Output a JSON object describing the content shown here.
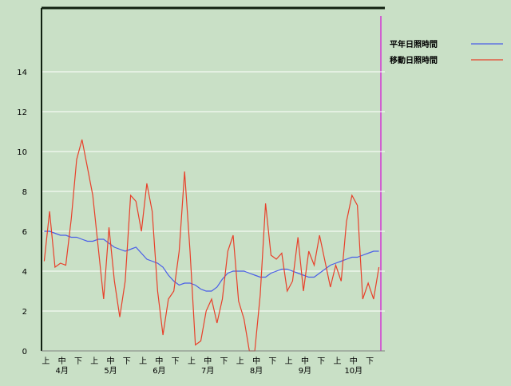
{
  "chart_data": {
    "type": "line",
    "categories": [
      "上",
      null,
      null,
      "中",
      null,
      null,
      "下",
      null,
      null,
      "上",
      null,
      null,
      "中",
      null,
      null,
      "下",
      null,
      null,
      "上",
      null,
      null,
      "中",
      null,
      null,
      "下",
      null,
      null,
      "上",
      null,
      null,
      "中",
      null,
      null,
      "下",
      null,
      null,
      "上",
      null,
      null,
      "中",
      null,
      null,
      "下",
      null,
      null,
      "上",
      null,
      null,
      "中",
      null,
      null,
      "下",
      null,
      null,
      "上",
      null,
      null,
      "中",
      null,
      null,
      "下",
      null,
      null
    ],
    "months": [
      "4月",
      "5月",
      "6月",
      "7月",
      "8月",
      "9月",
      "10月"
    ],
    "ylim": [
      0,
      17.2
    ],
    "yticks": [
      0,
      2,
      4,
      6,
      8,
      10,
      12,
      14
    ],
    "grid": true,
    "series": [
      {
        "name": "平年日照時間",
        "color": "#4a5ee8",
        "values": [
          6.0,
          6.0,
          5.9,
          5.8,
          5.8,
          5.7,
          5.7,
          5.6,
          5.5,
          5.5,
          5.6,
          5.6,
          5.4,
          5.2,
          5.1,
          5.0,
          5.1,
          5.2,
          4.9,
          4.6,
          4.5,
          4.4,
          4.2,
          3.8,
          3.5,
          3.3,
          3.4,
          3.4,
          3.3,
          3.1,
          3.0,
          3.0,
          3.2,
          3.6,
          3.9,
          4.0,
          4.0,
          4.0,
          3.9,
          3.8,
          3.7,
          3.7,
          3.9,
          4.0,
          4.1,
          4.1,
          4.0,
          3.9,
          3.8,
          3.7,
          3.7,
          3.9,
          4.1,
          4.3,
          4.4,
          4.5,
          4.6,
          4.7,
          4.7,
          4.8,
          4.9,
          5.0,
          5.0
        ]
      },
      {
        "name": "移動日照時間",
        "color": "#e8402a",
        "values": [
          4.5,
          7.0,
          4.2,
          4.4,
          4.3,
          6.6,
          9.6,
          10.6,
          9.2,
          7.8,
          5.2,
          2.6,
          6.2,
          3.5,
          1.7,
          3.5,
          7.8,
          7.5,
          6.0,
          8.4,
          7.0,
          3.0,
          0.8,
          2.6,
          3.0,
          5.0,
          9.0,
          5.0,
          0.3,
          0.5,
          2.0,
          2.6,
          1.4,
          2.6,
          5.0,
          5.8,
          2.5,
          1.6,
          0.0,
          0.0,
          2.8,
          7.4,
          4.8,
          4.6,
          4.9,
          3.0,
          3.5,
          5.7,
          3.0,
          5.0,
          4.3,
          5.8,
          4.5,
          3.2,
          4.3,
          3.5,
          6.5,
          7.8,
          7.3,
          2.6,
          3.4,
          2.6,
          4.2
        ]
      }
    ]
  }
}
